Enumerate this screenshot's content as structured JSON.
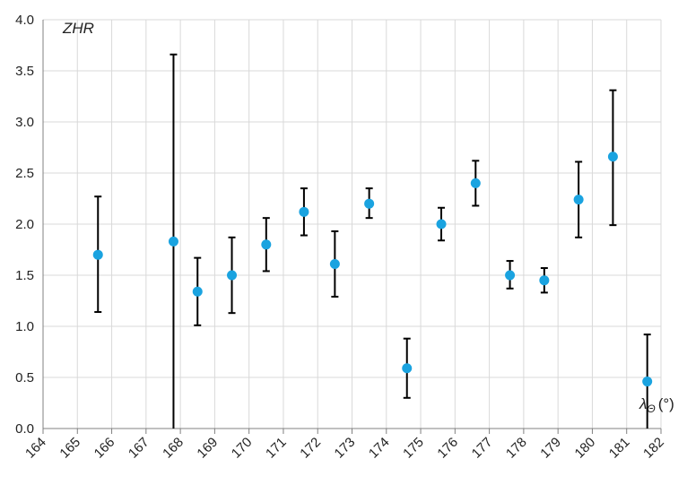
{
  "chart_data": {
    "type": "scatter",
    "title": "",
    "ylabel": "ZHR",
    "xlabel": "λ",
    "xlabel_sub": "Θ",
    "xlabel_unit": "(°)",
    "xlim": [
      164,
      182
    ],
    "ylim": [
      0.0,
      4.0
    ],
    "x_ticks": [
      164,
      165,
      166,
      167,
      168,
      169,
      170,
      171,
      172,
      173,
      174,
      175,
      176,
      177,
      178,
      179,
      180,
      181,
      182
    ],
    "y_ticks": [
      "0.0",
      "0.5",
      "1.0",
      "1.5",
      "2.0",
      "2.5",
      "3.0",
      "3.5",
      "4.0"
    ],
    "grid": true,
    "marker_color": "#1aa3e0",
    "errorbar_color": "#000000",
    "points": [
      {
        "x": 165.6,
        "y": 1.7,
        "ylow": 1.14,
        "yhigh": 2.27
      },
      {
        "x": 167.8,
        "y": 1.83,
        "ylow": 0.0,
        "yhigh": 3.66
      },
      {
        "x": 168.5,
        "y": 1.34,
        "ylow": 1.01,
        "yhigh": 1.67
      },
      {
        "x": 169.5,
        "y": 1.5,
        "ylow": 1.13,
        "yhigh": 1.87
      },
      {
        "x": 170.5,
        "y": 1.8,
        "ylow": 1.54,
        "yhigh": 2.06
      },
      {
        "x": 171.6,
        "y": 2.12,
        "ylow": 1.89,
        "yhigh": 2.35
      },
      {
        "x": 172.5,
        "y": 1.61,
        "ylow": 1.29,
        "yhigh": 1.93
      },
      {
        "x": 173.5,
        "y": 2.2,
        "ylow": 2.06,
        "yhigh": 2.35
      },
      {
        "x": 174.6,
        "y": 0.59,
        "ylow": 0.3,
        "yhigh": 0.88
      },
      {
        "x": 175.6,
        "y": 2.0,
        "ylow": 1.84,
        "yhigh": 2.16
      },
      {
        "x": 176.6,
        "y": 2.4,
        "ylow": 2.18,
        "yhigh": 2.62
      },
      {
        "x": 177.6,
        "y": 1.5,
        "ylow": 1.37,
        "yhigh": 1.64
      },
      {
        "x": 178.6,
        "y": 1.45,
        "ylow": 1.33,
        "yhigh": 1.57
      },
      {
        "x": 179.6,
        "y": 2.24,
        "ylow": 1.87,
        "yhigh": 2.61
      },
      {
        "x": 180.6,
        "y": 2.66,
        "ylow": 1.99,
        "yhigh": 3.31
      },
      {
        "x": 181.6,
        "y": 0.46,
        "ylow": 0.0,
        "yhigh": 0.92
      }
    ]
  }
}
